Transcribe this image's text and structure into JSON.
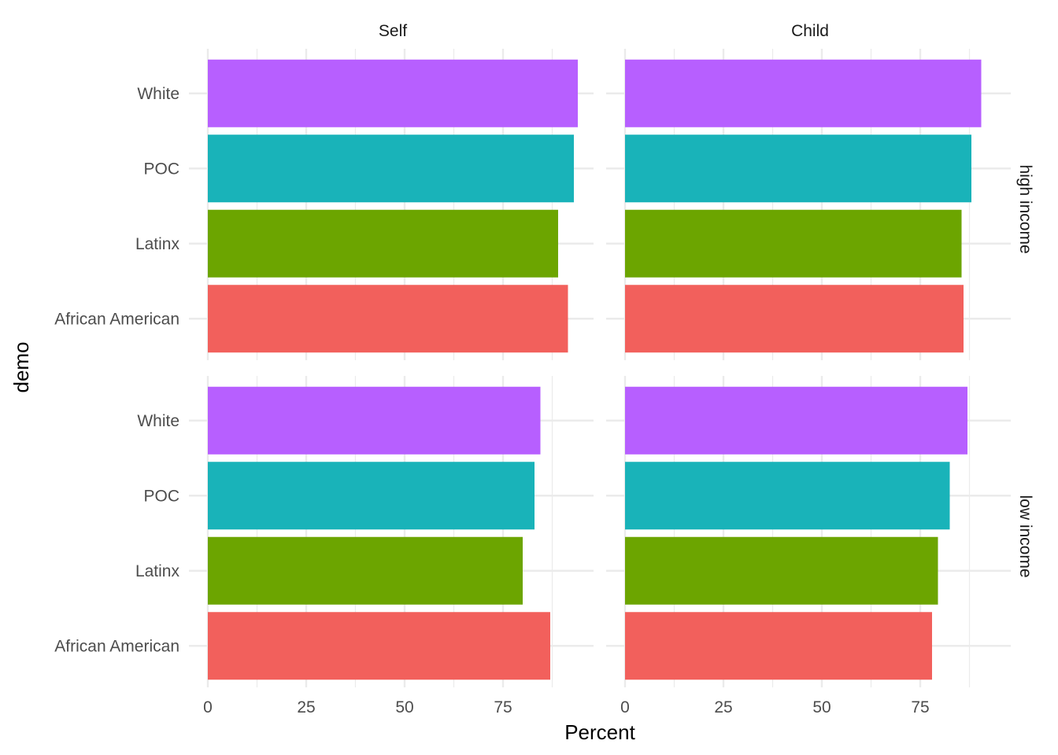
{
  "chart_data": {
    "type": "bar",
    "orientation": "horizontal",
    "facet_columns": [
      "Self",
      "Child"
    ],
    "facet_rows": [
      "high income",
      "low income"
    ],
    "categories": [
      "White",
      "POC",
      "Latinx",
      "African American"
    ],
    "colors": {
      "White": "#B75FFF",
      "POC": "#19B3B9",
      "Latinx": "#6CA500",
      "African American": "#F2605C"
    },
    "xlabel": "Percent",
    "ylabel": "demo",
    "xticks": [
      "0",
      "25",
      "50",
      "75"
    ],
    "xlim": [
      0,
      94
    ],
    "grid": true,
    "legend": "none",
    "panels": [
      {
        "column": "Self",
        "row": "high income",
        "values": {
          "White": 94,
          "POC": 93,
          "Latinx": 89,
          "African American": 91.5
        }
      },
      {
        "column": "Child",
        "row": "high income",
        "values": {
          "White": 90.5,
          "POC": 88,
          "Latinx": 85.5,
          "African American": 86
        }
      },
      {
        "column": "Self",
        "row": "low income",
        "values": {
          "White": 84.5,
          "POC": 83,
          "Latinx": 80,
          "African American": 87
        }
      },
      {
        "column": "Child",
        "row": "low income",
        "values": {
          "White": 87,
          "POC": 82.5,
          "Latinx": 79.5,
          "African American": 78
        }
      }
    ]
  }
}
